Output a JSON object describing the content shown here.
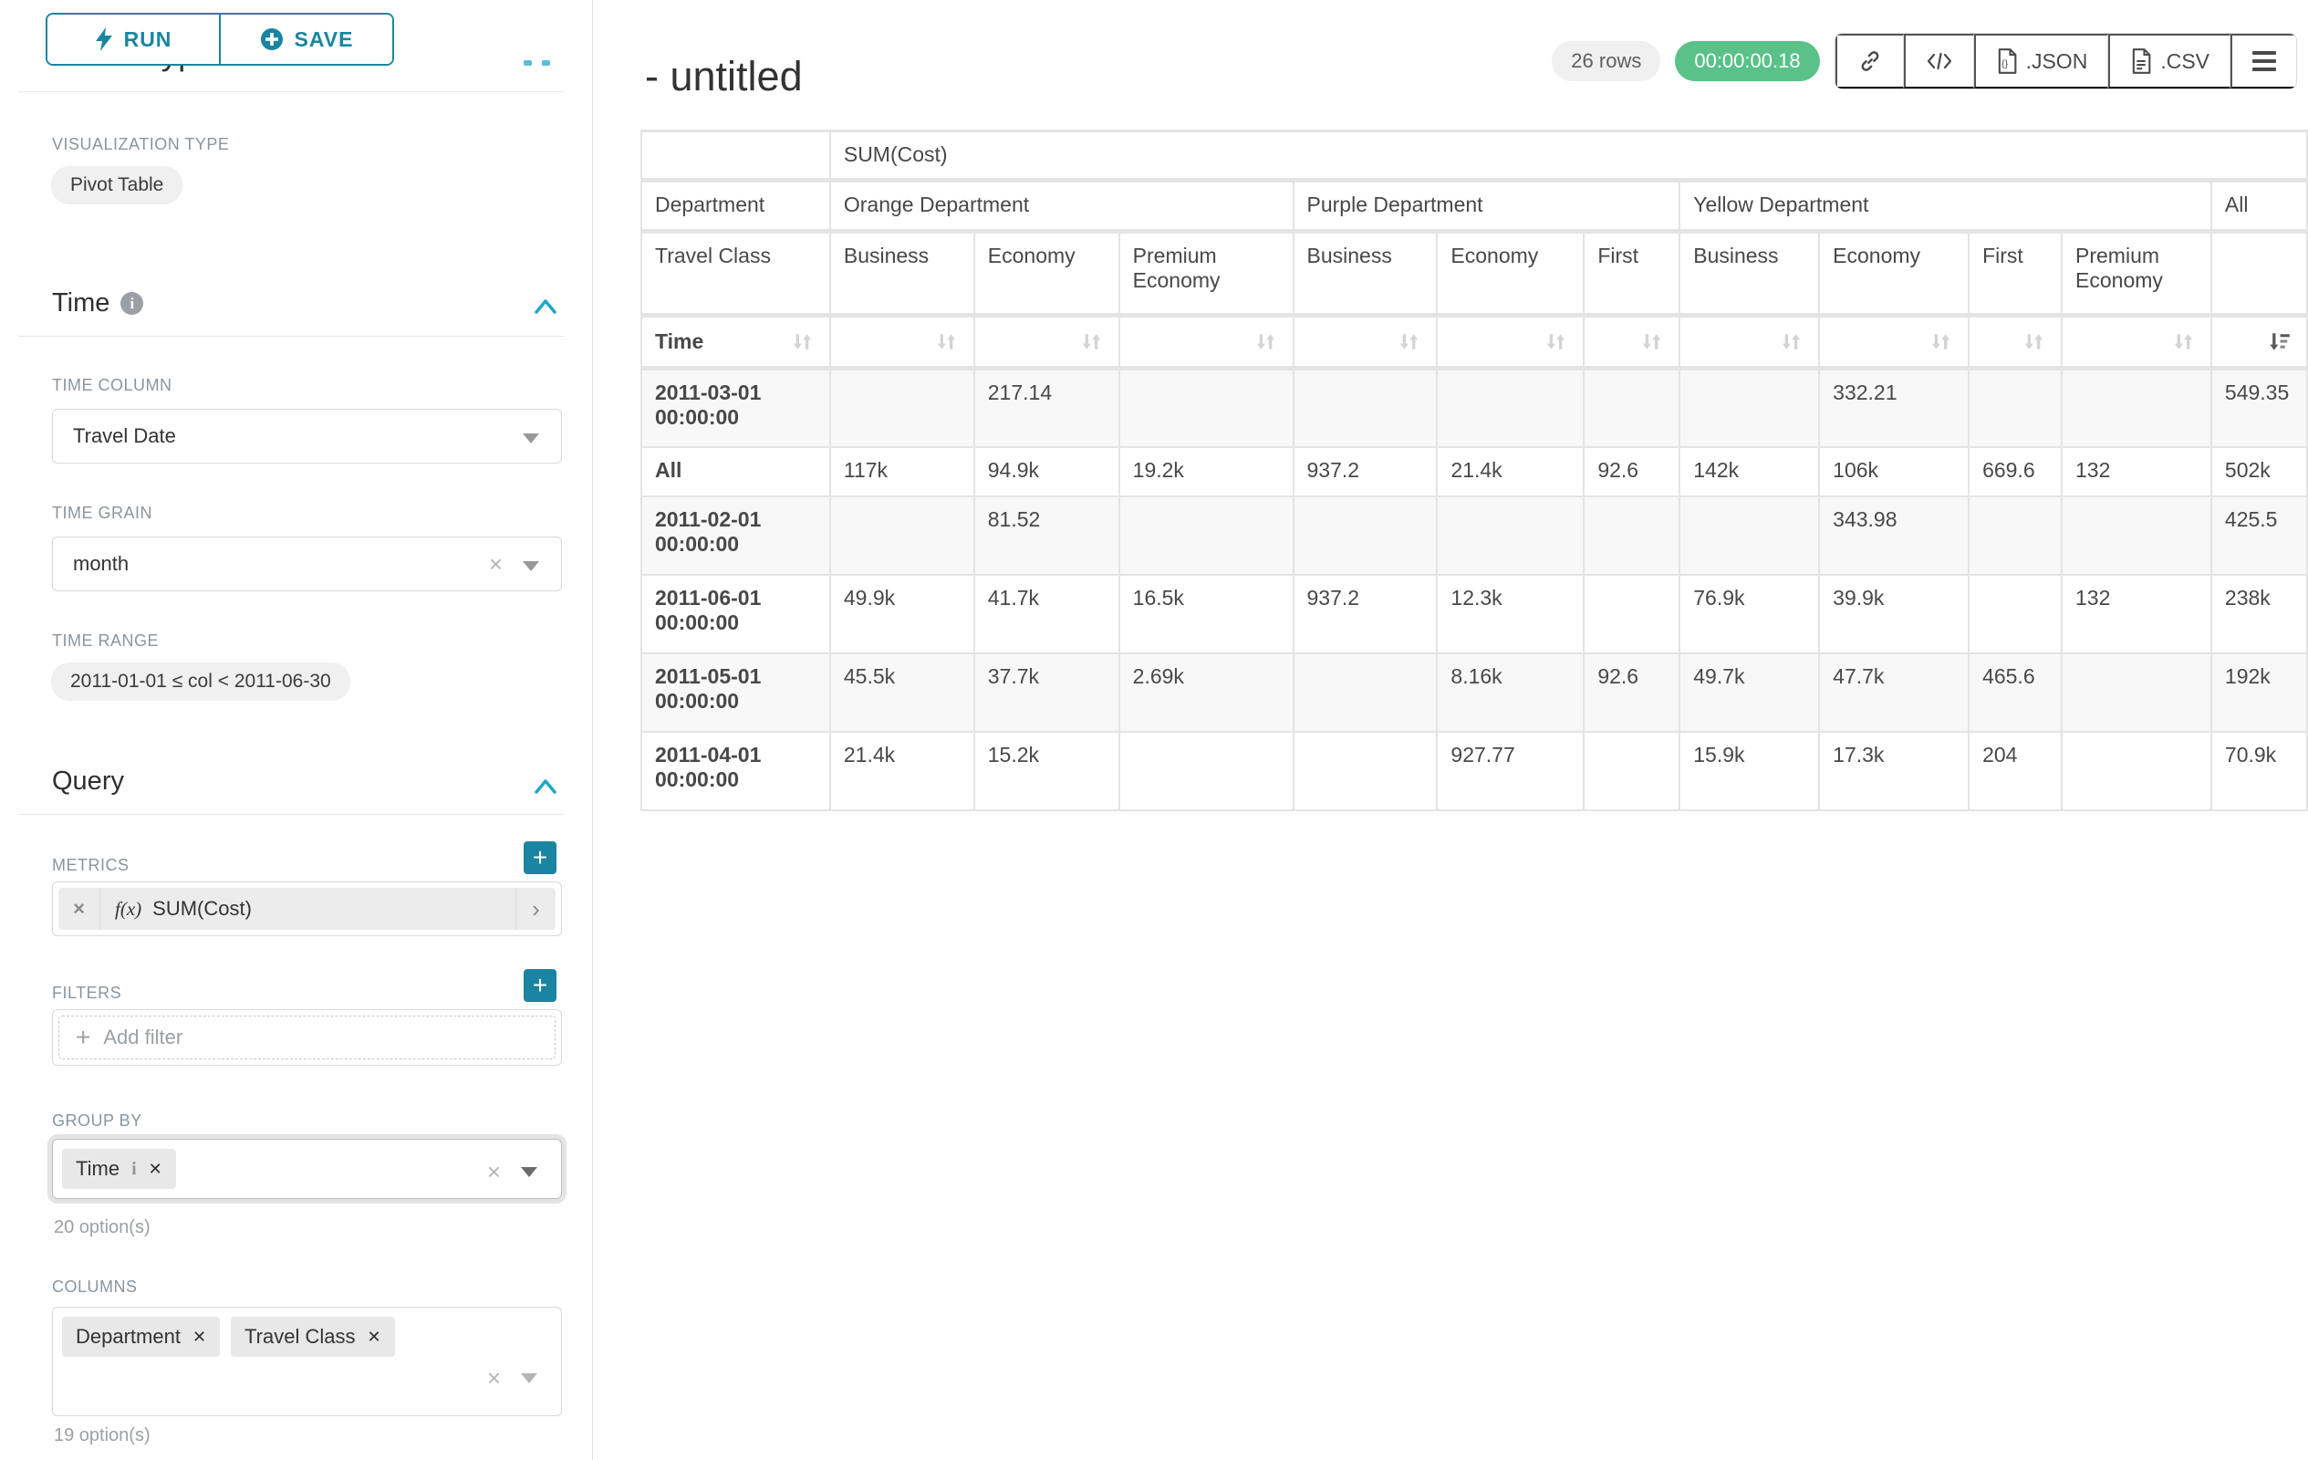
{
  "colors": {
    "accent": "#1a85a0",
    "accent_light": "#20a7c9",
    "success_green": "#5ac189",
    "stripe": "#f8f8f8",
    "grid": "#e4e4e4"
  },
  "toolbar": {
    "run_label": "RUN",
    "save_label": "SAVE"
  },
  "chart_type_section": {
    "clipped_heading": "Chart Type",
    "viz_type_label": "VISUALIZATION TYPE",
    "viz_type_value": "Pivot Table"
  },
  "time_section": {
    "heading": "Time",
    "time_column_label": "TIME COLUMN",
    "time_column_value": "Travel Date",
    "time_grain_label": "TIME GRAIN",
    "time_grain_value": "month",
    "time_range_label": "TIME RANGE",
    "time_range_value": "2011-01-01 ≤ col < 2011-06-30"
  },
  "query_section": {
    "heading": "Query",
    "metrics_label": "METRICS",
    "metric": {
      "fx": "f(x)",
      "label": "SUM(Cost)",
      "remove": "×",
      "chevron": "›"
    },
    "filters_label": "FILTERS",
    "add_filter_plus": "+",
    "add_filter_placeholder": "Add filter",
    "group_by_label": "GROUP BY",
    "group_by_pills": [
      {
        "label": "Time",
        "info": "i",
        "remove": "✕"
      }
    ],
    "group_by_hint": "20 option(s)",
    "columns_label": "COLUMNS",
    "columns_pills": [
      {
        "label": "Department",
        "remove": "✕"
      },
      {
        "label": "Travel Class",
        "remove": "✕"
      }
    ],
    "columns_hint": "19 option(s)",
    "plus_button": "+"
  },
  "result_header": {
    "title": "- untitled",
    "rows_badge": "26 rows",
    "timer_badge": "00:00:00.18",
    "json_label": ".JSON",
    "csv_label": ".CSV"
  },
  "table": {
    "metric_row": {
      "blank": "",
      "label": "SUM(Cost)"
    },
    "department_row": {
      "label": "Department",
      "groups": [
        {
          "label": "Orange Department",
          "span": 3
        },
        {
          "label": "Purple Department",
          "span": 3
        },
        {
          "label": "Yellow Department",
          "span": 4
        },
        {
          "label": "All",
          "span": 1
        }
      ]
    },
    "class_row": {
      "label": "Travel Class",
      "cells": [
        "Business",
        "Economy",
        "Premium Economy",
        "Business",
        "Economy",
        "First",
        "Business",
        "Economy",
        "First",
        "Premium Economy",
        ""
      ]
    },
    "sort_row": {
      "label": "Time",
      "active_sort_col": 10,
      "active_sort_dir": "desc"
    },
    "rows": [
      {
        "label": "2011-03-01 00:00:00",
        "values": [
          "",
          "217.14",
          "",
          "",
          "",
          "",
          "",
          "332.21",
          "",
          "",
          "549.35"
        ]
      },
      {
        "label": "All",
        "values": [
          "117k",
          "94.9k",
          "19.2k",
          "937.2",
          "21.4k",
          "92.6",
          "142k",
          "106k",
          "669.6",
          "132",
          "502k"
        ]
      },
      {
        "label": "2011-02-01 00:00:00",
        "values": [
          "",
          "81.52",
          "",
          "",
          "",
          "",
          "",
          "343.98",
          "",
          "",
          "425.5"
        ]
      },
      {
        "label": "2011-06-01 00:00:00",
        "values": [
          "49.9k",
          "41.7k",
          "16.5k",
          "937.2",
          "12.3k",
          "",
          "76.9k",
          "39.9k",
          "",
          "132",
          "238k"
        ]
      },
      {
        "label": "2011-05-01 00:00:00",
        "values": [
          "45.5k",
          "37.7k",
          "2.69k",
          "",
          "8.16k",
          "92.6",
          "49.7k",
          "47.7k",
          "465.6",
          "",
          "192k"
        ]
      },
      {
        "label": "2011-04-01 00:00:00",
        "values": [
          "21.4k",
          "15.2k",
          "",
          "",
          "927.77",
          "",
          "15.9k",
          "17.3k",
          "204",
          "",
          "70.9k"
        ]
      }
    ]
  }
}
